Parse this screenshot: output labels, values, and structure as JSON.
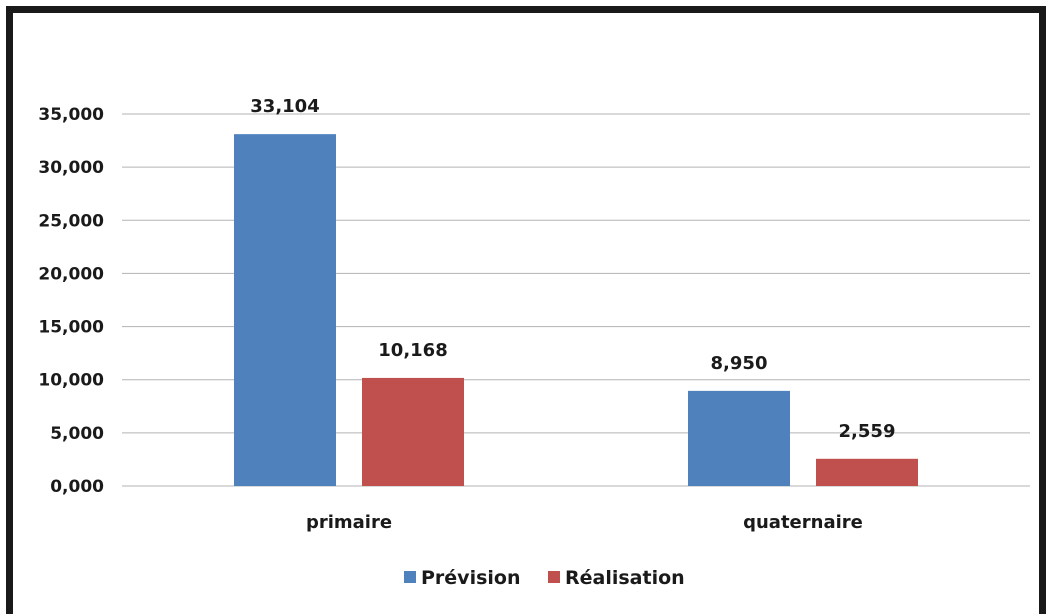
{
  "chart_data": {
    "type": "bar",
    "categories": [
      "primaire",
      "quaternaire"
    ],
    "series": [
      {
        "name": "Prévision",
        "color": "#4f81bd",
        "values": [
          33104,
          8950
        ],
        "labels": [
          "33,104",
          "8,950"
        ]
      },
      {
        "name": "Réalisation",
        "color": "#c0504d",
        "values": [
          10168,
          2559
        ],
        "labels": [
          "10,168",
          "2,559"
        ]
      }
    ],
    "ylim": [
      0,
      35000
    ],
    "yticks": [
      0,
      5000,
      10000,
      15000,
      20000,
      25000,
      30000,
      35000
    ],
    "ytick_labels": [
      "0,000",
      "5,000",
      "10,000",
      "15,000",
      "20,000",
      "25,000",
      "30,000",
      "35,000"
    ],
    "grid": true,
    "legend_position": "bottom",
    "title": "",
    "xlabel": "",
    "ylabel": ""
  }
}
